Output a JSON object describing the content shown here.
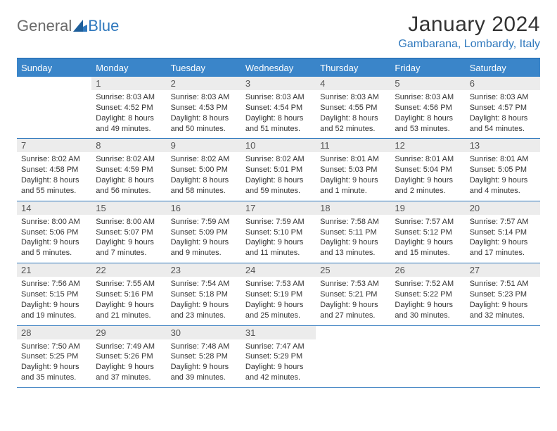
{
  "logo": {
    "word1": "General",
    "word2": "Blue"
  },
  "title": "January 2024",
  "location": "Gambarana, Lombardy, Italy",
  "theme": {
    "accent": "#3a85c9",
    "accent_border": "#2f78bd",
    "daynum_bg": "#ececec",
    "text": "#333333"
  },
  "day_names": [
    "Sunday",
    "Monday",
    "Tuesday",
    "Wednesday",
    "Thursday",
    "Friday",
    "Saturday"
  ],
  "weeks": [
    [
      {
        "n": "",
        "sr": "",
        "ss": "",
        "d1": "",
        "d2": ""
      },
      {
        "n": "1",
        "sr": "Sunrise: 8:03 AM",
        "ss": "Sunset: 4:52 PM",
        "d1": "Daylight: 8 hours",
        "d2": "and 49 minutes."
      },
      {
        "n": "2",
        "sr": "Sunrise: 8:03 AM",
        "ss": "Sunset: 4:53 PM",
        "d1": "Daylight: 8 hours",
        "d2": "and 50 minutes."
      },
      {
        "n": "3",
        "sr": "Sunrise: 8:03 AM",
        "ss": "Sunset: 4:54 PM",
        "d1": "Daylight: 8 hours",
        "d2": "and 51 minutes."
      },
      {
        "n": "4",
        "sr": "Sunrise: 8:03 AM",
        "ss": "Sunset: 4:55 PM",
        "d1": "Daylight: 8 hours",
        "d2": "and 52 minutes."
      },
      {
        "n": "5",
        "sr": "Sunrise: 8:03 AM",
        "ss": "Sunset: 4:56 PM",
        "d1": "Daylight: 8 hours",
        "d2": "and 53 minutes."
      },
      {
        "n": "6",
        "sr": "Sunrise: 8:03 AM",
        "ss": "Sunset: 4:57 PM",
        "d1": "Daylight: 8 hours",
        "d2": "and 54 minutes."
      }
    ],
    [
      {
        "n": "7",
        "sr": "Sunrise: 8:02 AM",
        "ss": "Sunset: 4:58 PM",
        "d1": "Daylight: 8 hours",
        "d2": "and 55 minutes."
      },
      {
        "n": "8",
        "sr": "Sunrise: 8:02 AM",
        "ss": "Sunset: 4:59 PM",
        "d1": "Daylight: 8 hours",
        "d2": "and 56 minutes."
      },
      {
        "n": "9",
        "sr": "Sunrise: 8:02 AM",
        "ss": "Sunset: 5:00 PM",
        "d1": "Daylight: 8 hours",
        "d2": "and 58 minutes."
      },
      {
        "n": "10",
        "sr": "Sunrise: 8:02 AM",
        "ss": "Sunset: 5:01 PM",
        "d1": "Daylight: 8 hours",
        "d2": "and 59 minutes."
      },
      {
        "n": "11",
        "sr": "Sunrise: 8:01 AM",
        "ss": "Sunset: 5:03 PM",
        "d1": "Daylight: 9 hours",
        "d2": "and 1 minute."
      },
      {
        "n": "12",
        "sr": "Sunrise: 8:01 AM",
        "ss": "Sunset: 5:04 PM",
        "d1": "Daylight: 9 hours",
        "d2": "and 2 minutes."
      },
      {
        "n": "13",
        "sr": "Sunrise: 8:01 AM",
        "ss": "Sunset: 5:05 PM",
        "d1": "Daylight: 9 hours",
        "d2": "and 4 minutes."
      }
    ],
    [
      {
        "n": "14",
        "sr": "Sunrise: 8:00 AM",
        "ss": "Sunset: 5:06 PM",
        "d1": "Daylight: 9 hours",
        "d2": "and 5 minutes."
      },
      {
        "n": "15",
        "sr": "Sunrise: 8:00 AM",
        "ss": "Sunset: 5:07 PM",
        "d1": "Daylight: 9 hours",
        "d2": "and 7 minutes."
      },
      {
        "n": "16",
        "sr": "Sunrise: 7:59 AM",
        "ss": "Sunset: 5:09 PM",
        "d1": "Daylight: 9 hours",
        "d2": "and 9 minutes."
      },
      {
        "n": "17",
        "sr": "Sunrise: 7:59 AM",
        "ss": "Sunset: 5:10 PM",
        "d1": "Daylight: 9 hours",
        "d2": "and 11 minutes."
      },
      {
        "n": "18",
        "sr": "Sunrise: 7:58 AM",
        "ss": "Sunset: 5:11 PM",
        "d1": "Daylight: 9 hours",
        "d2": "and 13 minutes."
      },
      {
        "n": "19",
        "sr": "Sunrise: 7:57 AM",
        "ss": "Sunset: 5:12 PM",
        "d1": "Daylight: 9 hours",
        "d2": "and 15 minutes."
      },
      {
        "n": "20",
        "sr": "Sunrise: 7:57 AM",
        "ss": "Sunset: 5:14 PM",
        "d1": "Daylight: 9 hours",
        "d2": "and 17 minutes."
      }
    ],
    [
      {
        "n": "21",
        "sr": "Sunrise: 7:56 AM",
        "ss": "Sunset: 5:15 PM",
        "d1": "Daylight: 9 hours",
        "d2": "and 19 minutes."
      },
      {
        "n": "22",
        "sr": "Sunrise: 7:55 AM",
        "ss": "Sunset: 5:16 PM",
        "d1": "Daylight: 9 hours",
        "d2": "and 21 minutes."
      },
      {
        "n": "23",
        "sr": "Sunrise: 7:54 AM",
        "ss": "Sunset: 5:18 PM",
        "d1": "Daylight: 9 hours",
        "d2": "and 23 minutes."
      },
      {
        "n": "24",
        "sr": "Sunrise: 7:53 AM",
        "ss": "Sunset: 5:19 PM",
        "d1": "Daylight: 9 hours",
        "d2": "and 25 minutes."
      },
      {
        "n": "25",
        "sr": "Sunrise: 7:53 AM",
        "ss": "Sunset: 5:21 PM",
        "d1": "Daylight: 9 hours",
        "d2": "and 27 minutes."
      },
      {
        "n": "26",
        "sr": "Sunrise: 7:52 AM",
        "ss": "Sunset: 5:22 PM",
        "d1": "Daylight: 9 hours",
        "d2": "and 30 minutes."
      },
      {
        "n": "27",
        "sr": "Sunrise: 7:51 AM",
        "ss": "Sunset: 5:23 PM",
        "d1": "Daylight: 9 hours",
        "d2": "and 32 minutes."
      }
    ],
    [
      {
        "n": "28",
        "sr": "Sunrise: 7:50 AM",
        "ss": "Sunset: 5:25 PM",
        "d1": "Daylight: 9 hours",
        "d2": "and 35 minutes."
      },
      {
        "n": "29",
        "sr": "Sunrise: 7:49 AM",
        "ss": "Sunset: 5:26 PM",
        "d1": "Daylight: 9 hours",
        "d2": "and 37 minutes."
      },
      {
        "n": "30",
        "sr": "Sunrise: 7:48 AM",
        "ss": "Sunset: 5:28 PM",
        "d1": "Daylight: 9 hours",
        "d2": "and 39 minutes."
      },
      {
        "n": "31",
        "sr": "Sunrise: 7:47 AM",
        "ss": "Sunset: 5:29 PM",
        "d1": "Daylight: 9 hours",
        "d2": "and 42 minutes."
      },
      {
        "n": "",
        "sr": "",
        "ss": "",
        "d1": "",
        "d2": ""
      },
      {
        "n": "",
        "sr": "",
        "ss": "",
        "d1": "",
        "d2": ""
      },
      {
        "n": "",
        "sr": "",
        "ss": "",
        "d1": "",
        "d2": ""
      }
    ]
  ]
}
